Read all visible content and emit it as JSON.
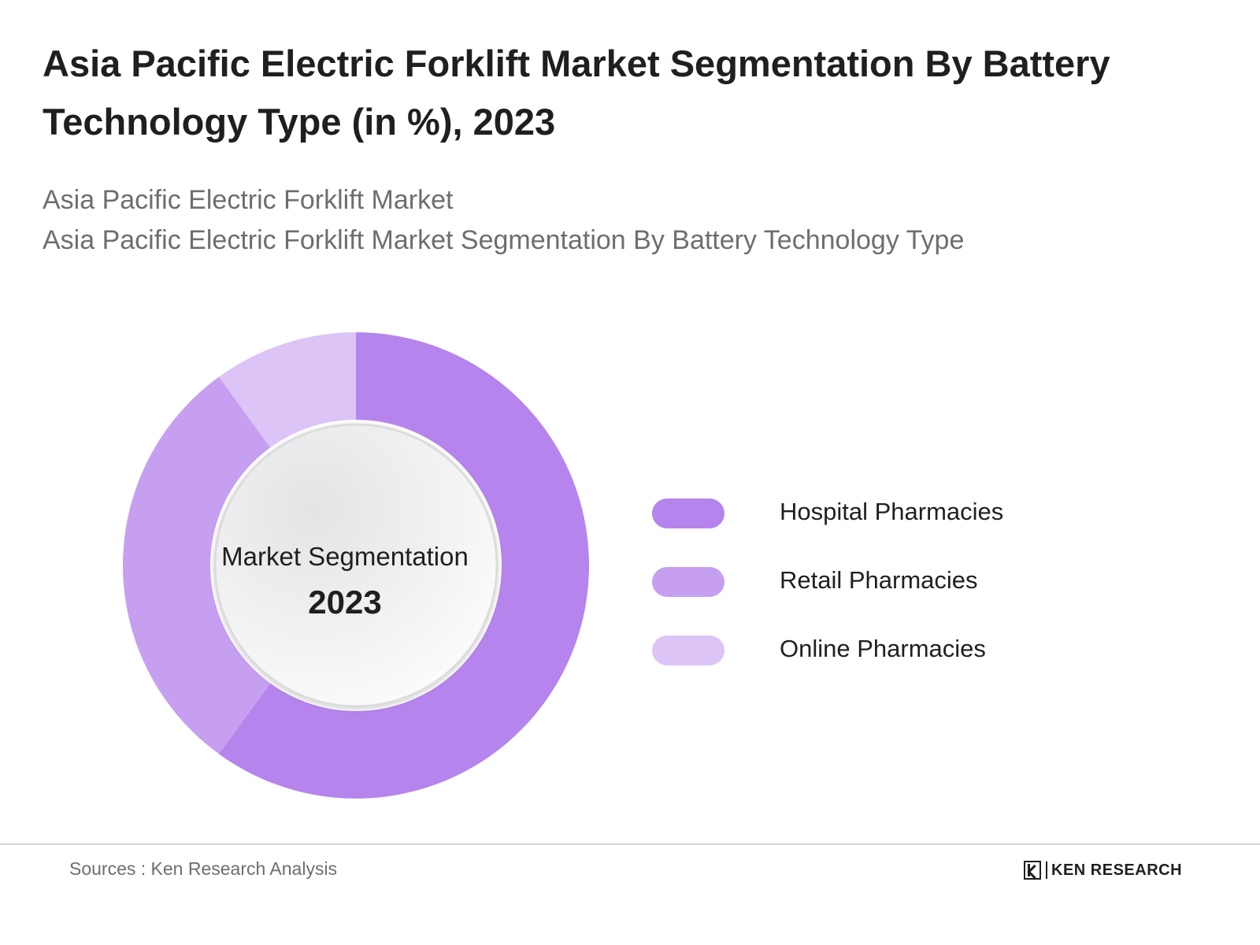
{
  "header": {
    "title": "Asia Pacific Electric Forklift Market Segmentation By Battery Technology Type (in %), 2023",
    "subtitle_line1": "Asia Pacific Electric Forklift Market",
    "subtitle_line2": "Asia Pacific Electric Forklift Market Segmentation By Battery Technology Type"
  },
  "chart_data": {
    "type": "pie",
    "variant": "donut",
    "title": "Asia Pacific Electric Forklift Market Segmentation By Battery Technology Type (in %), 2023",
    "center_label": "Market Segmentation",
    "center_value": "2023",
    "categories": [
      "Hospital Pharmacies",
      "Retail Pharmacies",
      "Online Pharmacies"
    ],
    "values": [
      60,
      30,
      10
    ],
    "colors": [
      "#b584ec",
      "#c69ff0",
      "#dcc4f7"
    ],
    "legend_position": "right",
    "start_angle": "12 o'clock",
    "direction": "clockwise"
  },
  "footer": {
    "source": "Sources : Ken Research Analysis",
    "brand": "KEN RESEARCH"
  }
}
